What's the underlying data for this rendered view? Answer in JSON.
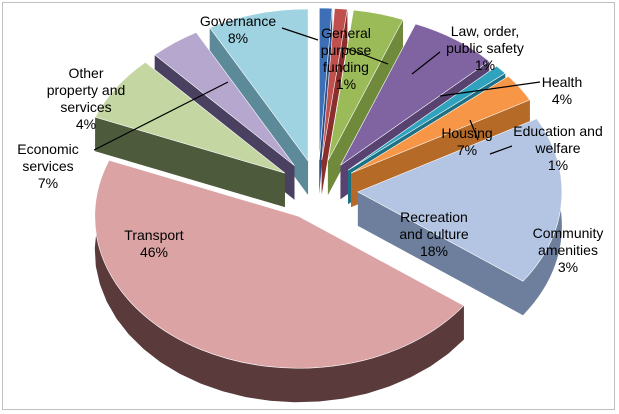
{
  "chart_data": {
    "type": "pie",
    "title": "",
    "style": "exploded-3d",
    "slices": [
      {
        "label": "General purpose funding",
        "lines": [
          "General",
          "purpose",
          "funding",
          "1%"
        ],
        "value": 1,
        "color": "#3d6fb6",
        "side": "#2a4f86"
      },
      {
        "label": "Law, order, public safety",
        "lines": [
          "Law, order,",
          "public safety",
          "1%"
        ],
        "value": 1,
        "color": "#c0504d",
        "side": "#8a2f2c"
      },
      {
        "label": "Health",
        "lines": [
          "Health",
          "4%"
        ],
        "value": 4,
        "color": "#9bbb59",
        "side": "#6f8a3a"
      },
      {
        "label": "Housing",
        "lines": [
          "Housing",
          "7%"
        ],
        "value": 7,
        "color": "#8064a2",
        "side": "#574270"
      },
      {
        "label": "Education and welfare",
        "lines": [
          "Education and",
          "welfare",
          "1%"
        ],
        "value": 1,
        "color": "#2fa2be",
        "side": "#1d7185"
      },
      {
        "label": "Community amenities",
        "lines": [
          "Community",
          "amenities",
          "3%"
        ],
        "value": 3,
        "color": "#f79646",
        "side": "#b56a27"
      },
      {
        "label": "Recreation and culture",
        "lines": [
          "Recreation",
          "and culture",
          "18%"
        ],
        "value": 18,
        "color": "#b3c5e2",
        "side": "#6d7f9c"
      },
      {
        "label": "Transport",
        "lines": [
          "Transport",
          "46%"
        ],
        "value": 46,
        "color": "#dba3a4",
        "side": "#5a3a3b"
      },
      {
        "label": "Economic services",
        "lines": [
          "Economic",
          "services",
          "7%"
        ],
        "value": 7,
        "color": "#c4d6a2",
        "side": "#4d5a3b"
      },
      {
        "label": "Other property and services",
        "lines": [
          "Other",
          "property and",
          "services",
          "4%"
        ],
        "value": 4,
        "color": "#b5a7ce",
        "side": "#4a4060"
      },
      {
        "label": "Governance",
        "lines": [
          "Governance",
          "8%"
        ],
        "value": 8,
        "color": "#9fd3e2",
        "side": "#5c8a98"
      }
    ]
  }
}
